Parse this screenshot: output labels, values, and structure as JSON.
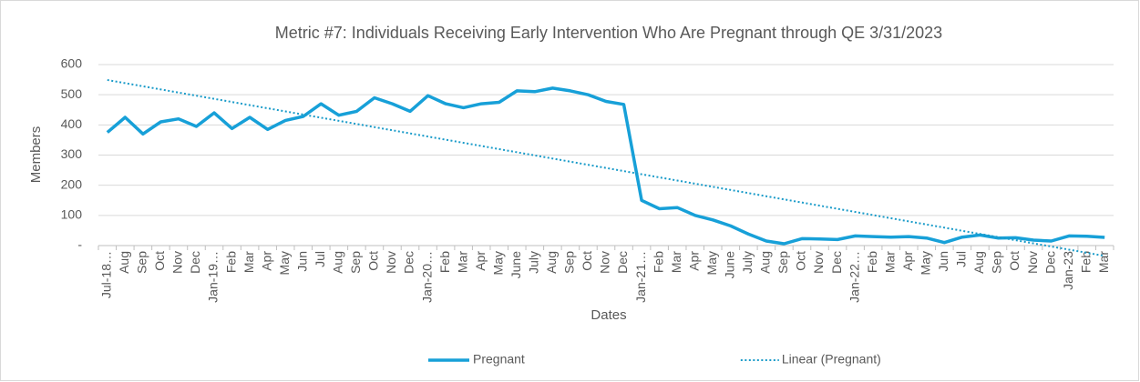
{
  "chart_data": {
    "type": "line",
    "title": "Metric #7: Individuals Receiving Early Intervention Who Are Pregnant through QE 3/31/2023",
    "x_label": "Dates",
    "y_label": "Members",
    "categories": [
      "Jul-18…",
      "Aug",
      "Sep",
      "Oct",
      "Nov",
      "Dec",
      "Jan-19…",
      "Feb",
      "Mar",
      "Apr",
      "May",
      "Jun",
      "Jul",
      "Aug",
      "Sep",
      "Oct",
      "Nov",
      "Dec",
      "Jan-20…",
      "Feb",
      "Mar",
      "Apr",
      "May",
      "June",
      "July",
      "Aug",
      "Sep",
      "Oct",
      "Nov",
      "Dec",
      "Jan-21…",
      "Feb",
      "Mar",
      "Apr",
      "May",
      "June",
      "July",
      "Aug",
      "Sep",
      "Oct",
      "Nov",
      "Dec",
      "Jan-22…",
      "Feb",
      "Mar",
      "Apr",
      "May",
      "Jun",
      "Jul",
      "Aug",
      "Sep",
      "Oct",
      "Nov",
      "Dec",
      "Jan-23",
      "Feb",
      "Mar"
    ],
    "series": [
      {
        "name": "Pregnant",
        "color": "#17a0d8",
        "values": [
          375,
          425,
          370,
          410,
          420,
          395,
          440,
          388,
          425,
          385,
          415,
          428,
          470,
          432,
          445,
          490,
          470,
          445,
          497,
          470,
          457,
          470,
          475,
          513,
          510,
          522,
          513,
          500,
          478,
          468,
          150,
          122,
          126,
          100,
          85,
          65,
          38,
          15,
          6,
          23,
          22,
          20,
          32,
          30,
          28,
          30,
          25,
          10,
          28,
          35,
          25,
          26,
          18,
          15,
          32,
          31,
          27
        ],
        "trendline": {
          "type": "linear",
          "name": "Linear (Pregnant)",
          "color": "#1a9bc9"
        }
      }
    ],
    "ylim": [
      0,
      600
    ],
    "yticks": [
      {
        "value": 0,
        "label": "-"
      },
      100,
      200,
      300,
      400,
      500,
      600
    ],
    "grid": true,
    "legend": "bottom"
  }
}
